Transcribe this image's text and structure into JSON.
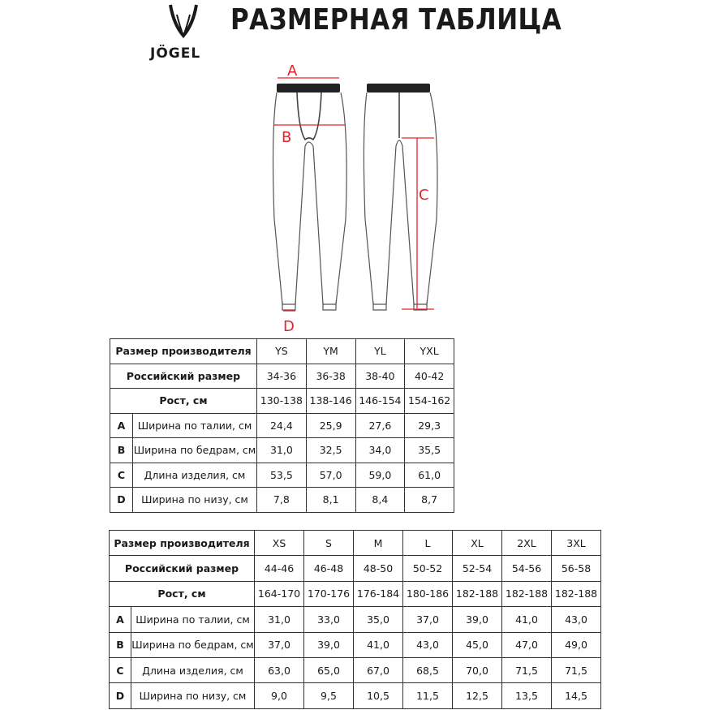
{
  "title": "РАЗМЕРНАЯ ТАБЛИЦА",
  "logo": {
    "text": "JÖGEL"
  },
  "diagram": {
    "labels": [
      "A",
      "B",
      "C",
      "D"
    ],
    "accent_color": "#e8202a"
  },
  "row_labels": {
    "manufacturer_size": "Размер производителя",
    "russian_size": "Российский размер",
    "height": "Рост, см"
  },
  "measurements": [
    {
      "letter": "A",
      "label": "Ширина по талии, см"
    },
    {
      "letter": "B",
      "label": "Ширина по бедрам, см"
    },
    {
      "letter": "C",
      "label": "Длина изделия, см"
    },
    {
      "letter": "D",
      "label": "Ширина по низу, см"
    }
  ],
  "table_kids": {
    "sizes": [
      "YS",
      "YM",
      "YL",
      "YXL"
    ],
    "russian": [
      "34-36",
      "36-38",
      "38-40",
      "40-42"
    ],
    "height": [
      "130-138",
      "138-146",
      "146-154",
      "154-162"
    ],
    "values": [
      [
        "24,4",
        "25,9",
        "27,6",
        "29,3"
      ],
      [
        "31,0",
        "32,5",
        "34,0",
        "35,5"
      ],
      [
        "53,5",
        "57,0",
        "59,0",
        "61,0"
      ],
      [
        "7,8",
        "8,1",
        "8,4",
        "8,7"
      ]
    ]
  },
  "table_adult": {
    "sizes": [
      "XS",
      "S",
      "M",
      "L",
      "XL",
      "2XL",
      "3XL"
    ],
    "russian": [
      "44-46",
      "46-48",
      "48-50",
      "50-52",
      "52-54",
      "54-56",
      "56-58"
    ],
    "height": [
      "164-170",
      "170-176",
      "176-184",
      "180-186",
      "182-188",
      "182-188",
      "182-188"
    ],
    "values": [
      [
        "31,0",
        "33,0",
        "35,0",
        "37,0",
        "39,0",
        "41,0",
        "43,0"
      ],
      [
        "37,0",
        "39,0",
        "41,0",
        "43,0",
        "45,0",
        "47,0",
        "49,0"
      ],
      [
        "63,0",
        "65,0",
        "67,0",
        "68,5",
        "70,0",
        "71,5",
        "71,5"
      ],
      [
        "9,0",
        "9,5",
        "10,5",
        "11,5",
        "12,5",
        "13,5",
        "14,5"
      ]
    ]
  }
}
